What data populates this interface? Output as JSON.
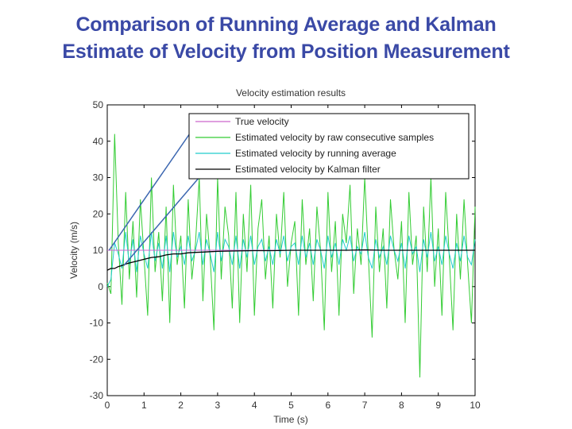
{
  "slide": {
    "title_line1": "Comparison of Running Average and Kalman",
    "title_line2": "Estimate of Velocity from Position Measurement"
  },
  "chart_data": {
    "type": "line",
    "title": "Velocity estimation results",
    "xlabel": "Time (s)",
    "ylabel": "Velocity (m/s)",
    "xlim": [
      0,
      10
    ],
    "ylim": [
      -30,
      50
    ],
    "xticks": [
      0,
      1,
      2,
      3,
      4,
      5,
      6,
      7,
      8,
      9,
      10
    ],
    "yticks": [
      -30,
      -20,
      -10,
      0,
      10,
      20,
      30,
      40,
      50
    ],
    "legend_position": "top-right",
    "colors": {
      "true": "#cc66cc",
      "raw": "#33cc33",
      "running": "#22cccc",
      "kalman": "#000000",
      "callout": "#3b66b0",
      "title": "#3a49a6"
    },
    "series": [
      {
        "name": "True velocity",
        "color": "#cc66cc",
        "x": [
          0,
          10
        ],
        "y": [
          10,
          10
        ]
      },
      {
        "name": "Estimated velocity by raw consecutive samples",
        "color": "#33cc33",
        "x": [
          0,
          0.1,
          0.2,
          0.3,
          0.4,
          0.5,
          0.6,
          0.7,
          0.8,
          0.9,
          1.0,
          1.1,
          1.2,
          1.3,
          1.4,
          1.5,
          1.6,
          1.7,
          1.8,
          1.9,
          2.0,
          2.1,
          2.2,
          2.3,
          2.4,
          2.5,
          2.6,
          2.7,
          2.8,
          2.9,
          3.0,
          3.1,
          3.2,
          3.3,
          3.4,
          3.5,
          3.6,
          3.7,
          3.8,
          3.9,
          4.0,
          4.1,
          4.2,
          4.3,
          4.4,
          4.5,
          4.6,
          4.7,
          4.8,
          4.9,
          5.0,
          5.1,
          5.2,
          5.3,
          5.4,
          5.5,
          5.6,
          5.7,
          5.8,
          5.9,
          6.0,
          6.1,
          6.2,
          6.3,
          6.4,
          6.5,
          6.6,
          6.7,
          6.8,
          6.9,
          7.0,
          7.1,
          7.2,
          7.3,
          7.4,
          7.5,
          7.6,
          7.7,
          7.8,
          7.9,
          8.0,
          8.1,
          8.2,
          8.3,
          8.4,
          8.5,
          8.6,
          8.7,
          8.8,
          8.9,
          9.0,
          9.1,
          9.2,
          9.3,
          9.4,
          9.5,
          9.6,
          9.7,
          9.8,
          9.9,
          10.0
        ],
        "y": [
          1,
          -2,
          42,
          12,
          -5,
          26,
          2,
          18,
          -3,
          24,
          8,
          -8,
          30,
          4,
          15,
          -4,
          22,
          -10,
          28,
          6,
          14,
          -6,
          24,
          2,
          12,
          30,
          -4,
          20,
          8,
          -12,
          30,
          2,
          22,
          14,
          -6,
          26,
          -10,
          20,
          4,
          28,
          -8,
          16,
          24,
          2,
          14,
          -6,
          20,
          8,
          26,
          0,
          12,
          18,
          -8,
          24,
          6,
          16,
          -4,
          22,
          10,
          -12,
          26,
          4,
          18,
          -8,
          20,
          12,
          28,
          -2,
          16,
          6,
          30,
          8,
          -14,
          22,
          4,
          16,
          -6,
          24,
          10,
          2,
          18,
          -10,
          26,
          6,
          14,
          -25,
          22,
          4,
          30,
          0,
          16,
          -8,
          26,
          8,
          -12,
          20,
          2,
          24,
          6,
          -10,
          22
        ]
      },
      {
        "name": "Estimated velocity by running average",
        "color": "#22cccc",
        "x": [
          0,
          0.1,
          0.2,
          0.3,
          0.4,
          0.5,
          0.6,
          0.7,
          0.8,
          0.9,
          1.0,
          1.1,
          1.2,
          1.3,
          1.4,
          1.5,
          1.6,
          1.7,
          1.8,
          1.9,
          2.0,
          2.1,
          2.2,
          2.3,
          2.4,
          2.5,
          2.6,
          2.7,
          2.8,
          2.9,
          3.0,
          3.1,
          3.2,
          3.3,
          3.4,
          3.5,
          3.6,
          3.7,
          3.8,
          3.9,
          4.0,
          4.1,
          4.2,
          4.3,
          4.4,
          4.5,
          4.6,
          4.7,
          4.8,
          4.9,
          5.0,
          5.1,
          5.2,
          5.3,
          5.4,
          5.5,
          5.6,
          5.7,
          5.8,
          5.9,
          6.0,
          6.1,
          6.2,
          6.3,
          6.4,
          6.5,
          6.6,
          6.7,
          6.8,
          6.9,
          7.0,
          7.1,
          7.2,
          7.3,
          7.4,
          7.5,
          7.6,
          7.7,
          7.8,
          7.9,
          8.0,
          8.1,
          8.2,
          8.3,
          8.4,
          8.5,
          8.6,
          8.7,
          8.8,
          8.9,
          9.0,
          9.1,
          9.2,
          9.3,
          9.4,
          9.5,
          9.6,
          9.7,
          9.8,
          9.9,
          10.0
        ],
        "y": [
          0,
          2,
          12,
          9,
          5,
          15,
          6,
          13,
          4,
          14,
          9,
          5,
          15,
          7,
          12,
          5,
          14,
          4,
          15,
          8,
          11,
          6,
          14,
          7,
          10,
          15,
          6,
          13,
          9,
          4,
          15,
          7,
          13,
          11,
          6,
          14,
          5,
          13,
          8,
          14,
          6,
          11,
          13,
          7,
          11,
          6,
          13,
          9,
          14,
          7,
          11,
          12,
          6,
          14,
          8,
          12,
          6,
          13,
          10,
          5,
          14,
          8,
          12,
          6,
          13,
          10,
          14,
          7,
          11,
          9,
          15,
          8,
          5,
          13,
          8,
          11,
          6,
          14,
          10,
          7,
          12,
          5,
          14,
          9,
          11,
          4,
          13,
          8,
          15,
          7,
          11,
          6,
          14,
          9,
          5,
          12,
          7,
          14,
          8,
          6,
          13
        ]
      },
      {
        "name": "Estimated velocity by Kalman filter",
        "color": "#000000",
        "x": [
          0,
          0.1,
          0.2,
          0.3,
          0.4,
          0.5,
          0.6,
          0.8,
          1.0,
          1.2,
          1.4,
          1.6,
          1.8,
          2.0,
          2.2,
          2.4,
          2.6,
          2.8,
          3.0,
          3.5,
          4.0,
          4.5,
          5.0,
          5.5,
          6.0,
          6.5,
          7.0,
          7.5,
          8.0,
          8.5,
          9.0,
          9.5,
          10.0
        ],
        "y": [
          4.5,
          5,
          5,
          5.5,
          5.8,
          6.2,
          6.5,
          7,
          7.5,
          8,
          8.2,
          8.7,
          9,
          9,
          9.3,
          9.4,
          9.5,
          9.6,
          9.7,
          9.8,
          9.9,
          9.9,
          10,
          10,
          10,
          10,
          10.1,
          10,
          10,
          10,
          10,
          10,
          10
        ]
      }
    ]
  }
}
